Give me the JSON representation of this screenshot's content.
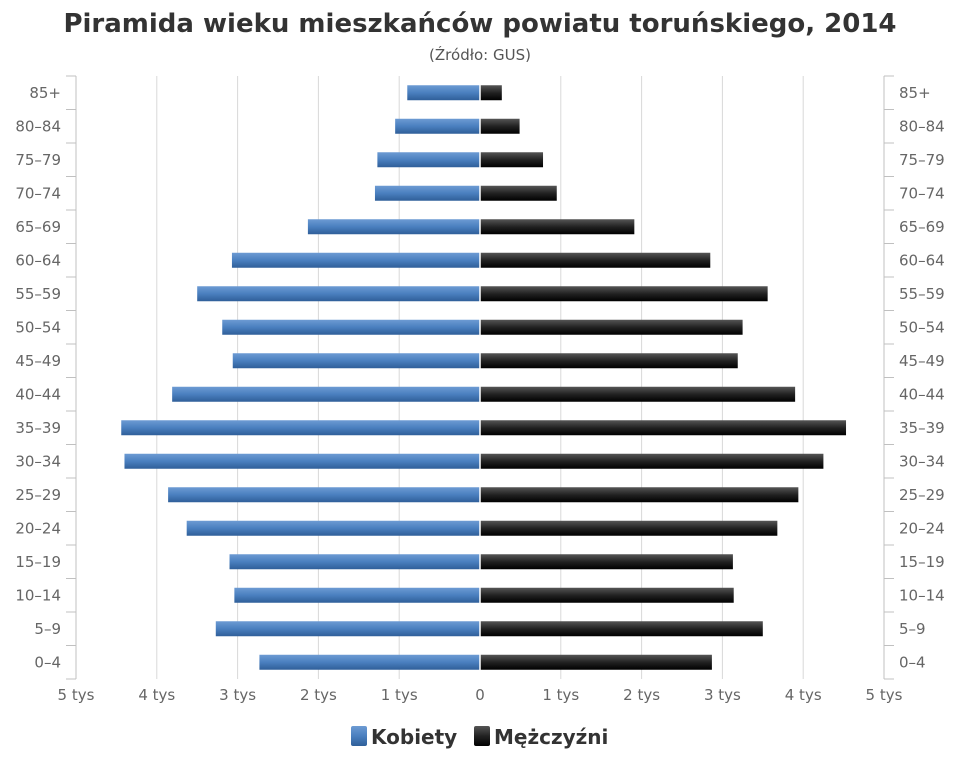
{
  "chart_data": {
    "type": "bar",
    "orientation": "horizontal-population-pyramid",
    "title": "Piramida wieku mieszkańców powiatu toruńskiego, 2014",
    "subtitle": "(Źródło: GUS)",
    "categories": [
      "85+",
      "80–84",
      "75–79",
      "70–74",
      "65–69",
      "60–64",
      "55–59",
      "50–54",
      "45–49",
      "40–44",
      "35–39",
      "30–34",
      "25–29",
      "20–24",
      "15–19",
      "10–14",
      "5–9",
      "0–4"
    ],
    "x_ticks": [
      "5 tys",
      "4 tys",
      "3 tys",
      "2 tys",
      "1 tys",
      "0",
      "1 tys",
      "2 tys",
      "3 tys",
      "4 tys",
      "5 tys"
    ],
    "xlim": [
      -5000,
      5000
    ],
    "grid": true,
    "legend_position": "bottom-center",
    "series": [
      {
        "name": "Kobiety",
        "color": "#4a7fbf",
        "values": [
          900,
          1050,
          1270,
          1300,
          2130,
          3070,
          3500,
          3190,
          3060,
          3810,
          4440,
          4400,
          3860,
          3630,
          3100,
          3040,
          3270,
          2730
        ]
      },
      {
        "name": "Mężczyźni",
        "color": "#222222",
        "values": [
          270,
          490,
          780,
          950,
          1910,
          2850,
          3560,
          3250,
          3190,
          3900,
          4530,
          4250,
          3940,
          3680,
          3130,
          3140,
          3500,
          2870
        ]
      }
    ]
  }
}
